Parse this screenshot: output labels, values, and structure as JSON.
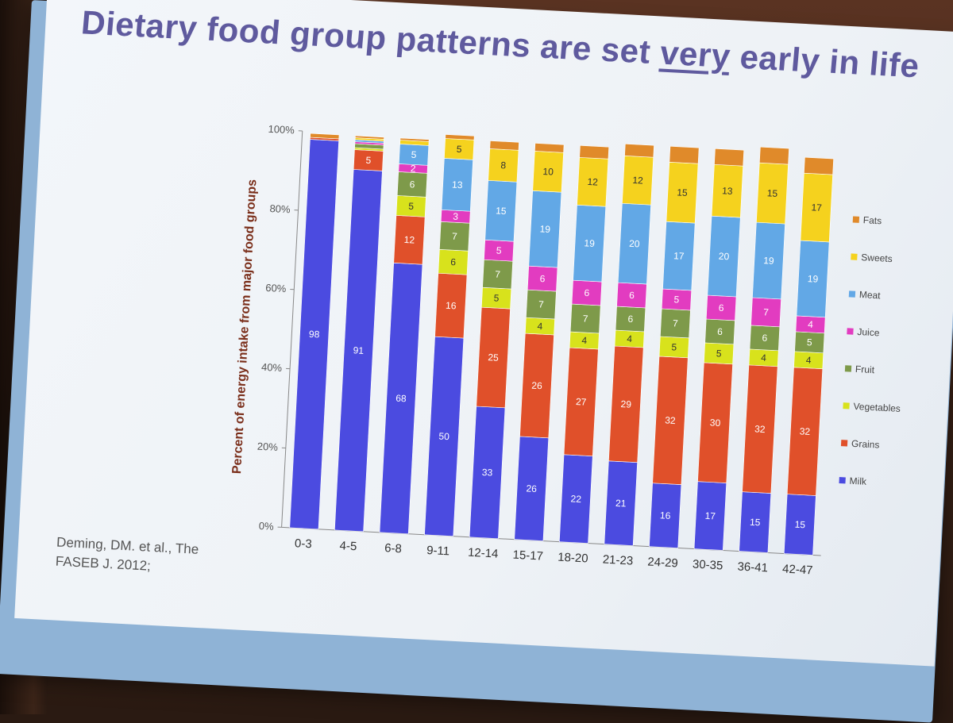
{
  "slide": {
    "title_pre": "Dietary food group patterns are set ",
    "title_emph": "very",
    "title_post": " early in life",
    "citation": "Deming, DM. et al., The FASEB J. 2012;"
  },
  "chart_data": {
    "type": "bar",
    "stacked": true,
    "title": "",
    "xlabel": "",
    "ylabel": "Percent of energy intake from major food groups",
    "ylim": [
      0,
      100
    ],
    "yticks": [
      "0%",
      "20%",
      "40%",
      "60%",
      "80%",
      "100%"
    ],
    "legend_position": "right",
    "categories": [
      "0-3",
      "4-5",
      "6-8",
      "9-11",
      "12-14",
      "15-17",
      "18-20",
      "21-23",
      "24-29",
      "30-35",
      "36-41",
      "42-47"
    ],
    "series": [
      {
        "name": "Milk",
        "color": "#4b4be0",
        "values": [
          98,
          91,
          68,
          50,
          33,
          26,
          22,
          21,
          16,
          17,
          15,
          15
        ]
      },
      {
        "name": "Grains",
        "color": "#e0502a",
        "values": [
          0.5,
          5,
          12,
          16,
          25,
          26,
          27,
          29,
          32,
          30,
          32,
          32
        ]
      },
      {
        "name": "Vegetables",
        "color": "#d8e21c",
        "values": [
          0,
          0.5,
          5,
          6,
          5,
          4,
          4,
          4,
          5,
          5,
          4,
          4
        ]
      },
      {
        "name": "Fruit",
        "color": "#7e9a4a",
        "values": [
          0,
          1,
          6,
          7,
          7,
          7,
          7,
          6,
          7,
          6,
          6,
          5
        ]
      },
      {
        "name": "Juice",
        "color": "#e23cc0",
        "values": [
          0,
          0.5,
          2,
          3,
          5,
          6,
          6,
          6,
          5,
          6,
          7,
          4
        ]
      },
      {
        "name": "Meat",
        "color": "#62a8e6",
        "values": [
          0,
          0.5,
          5,
          13,
          15,
          19,
          19,
          20,
          17,
          20,
          19,
          19
        ]
      },
      {
        "name": "Sweets",
        "color": "#f5d21e",
        "values": [
          0,
          0.5,
          1,
          5,
          8,
          10,
          12,
          12,
          15,
          13,
          15,
          17
        ]
      },
      {
        "name": "Fats",
        "color": "#e08a2a",
        "values": [
          1,
          0.5,
          0.5,
          1,
          2,
          2,
          3,
          3,
          4,
          4,
          4,
          4
        ]
      }
    ],
    "data_labels": [
      [
        "98",
        "",
        "",
        "",
        "",
        "",
        "",
        ""
      ],
      [
        "91",
        "5",
        "",
        "1",
        "",
        "",
        "",
        ""
      ],
      [
        "68",
        "12",
        "5",
        "6",
        "2",
        "5",
        "1",
        ""
      ],
      [
        "50",
        "16",
        "6",
        "7",
        "3",
        "13",
        "5",
        ""
      ],
      [
        "33",
        "25",
        "5",
        "7",
        "5",
        "15",
        "8",
        ""
      ],
      [
        "26",
        "26",
        "4",
        "7",
        "6",
        "19",
        "10",
        ""
      ],
      [
        "22",
        "27",
        "4",
        "7",
        "6",
        "19",
        "12",
        ""
      ],
      [
        "21",
        "29",
        "4",
        "6",
        "6",
        "20",
        "12",
        ""
      ],
      [
        "16",
        "32",
        "5",
        "7",
        "5",
        "17",
        "15",
        ""
      ],
      [
        "17",
        "30",
        "5",
        "6",
        "6",
        "20",
        "13",
        ""
      ],
      [
        "15",
        "32",
        "4",
        "6",
        "7",
        "19",
        "15",
        ""
      ],
      [
        "15",
        "32",
        "4",
        "5",
        "4",
        "19",
        "17",
        ""
      ]
    ]
  }
}
